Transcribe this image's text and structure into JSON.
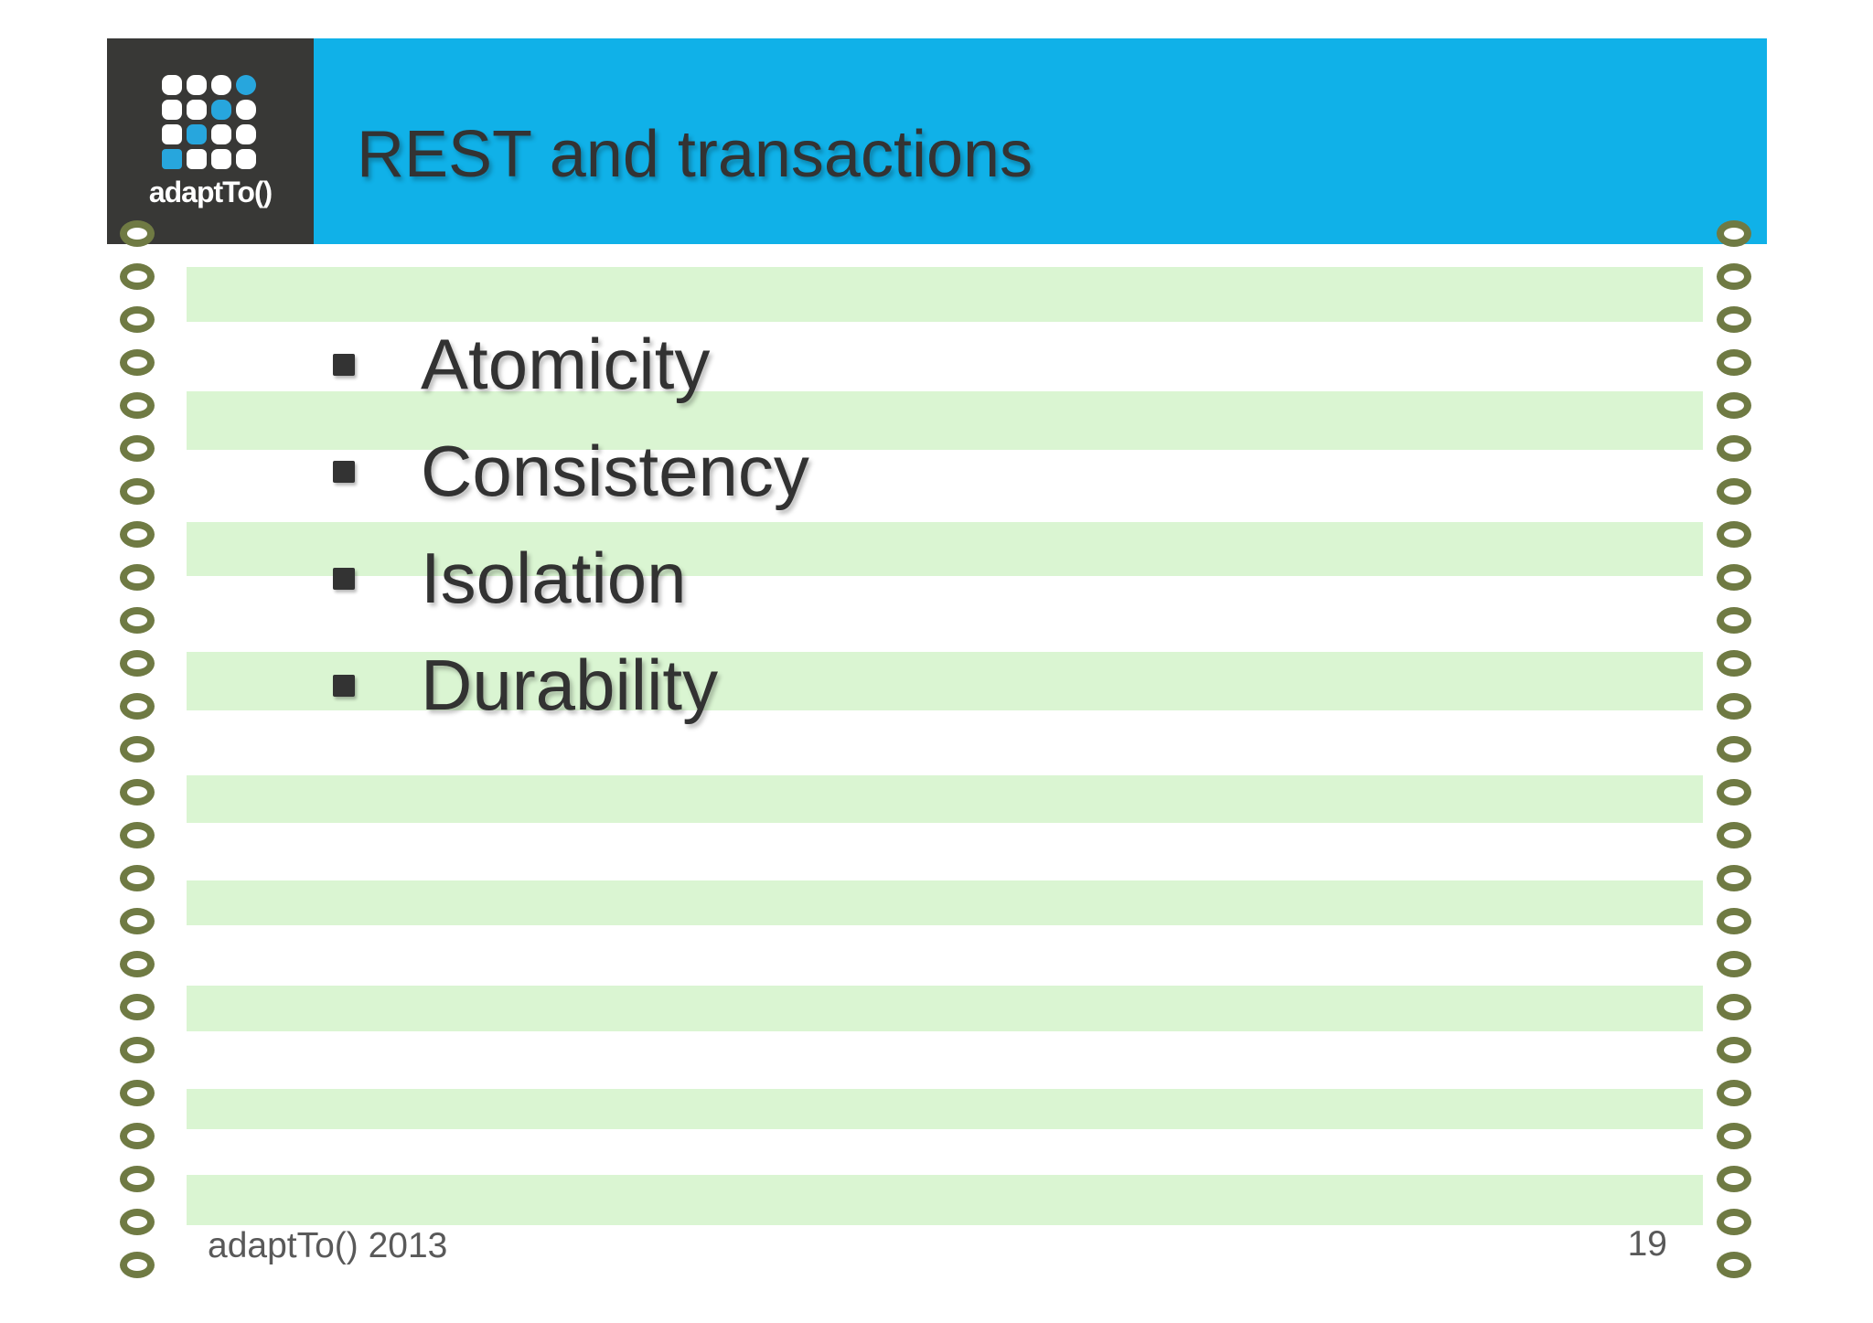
{
  "slide": {
    "logo": {
      "text": "adaptTo()",
      "grid": [
        [
          0,
          0,
          0,
          1
        ],
        [
          0,
          0,
          1,
          0
        ],
        [
          0,
          1,
          0,
          0
        ],
        [
          1,
          0,
          0,
          0
        ]
      ]
    },
    "header": {
      "title": "REST and transactions"
    },
    "list": {
      "items": [
        "Atomicity",
        "Consistency",
        "Isolation",
        "Durability"
      ]
    },
    "footer": {
      "left": "adaptTo() 2013",
      "page_number": "19"
    },
    "colors": {
      "banner_blue": "#10b1e8",
      "logo_background": "#383836",
      "logo_accent_blue": "#27a6dd",
      "logo_cell_white": "#ffffff",
      "stripe_green": "#daf5d2",
      "ring_olive": "#6f7a43",
      "title_text": "#333333",
      "body_text": "#323232",
      "footer_text": "#595959"
    }
  }
}
